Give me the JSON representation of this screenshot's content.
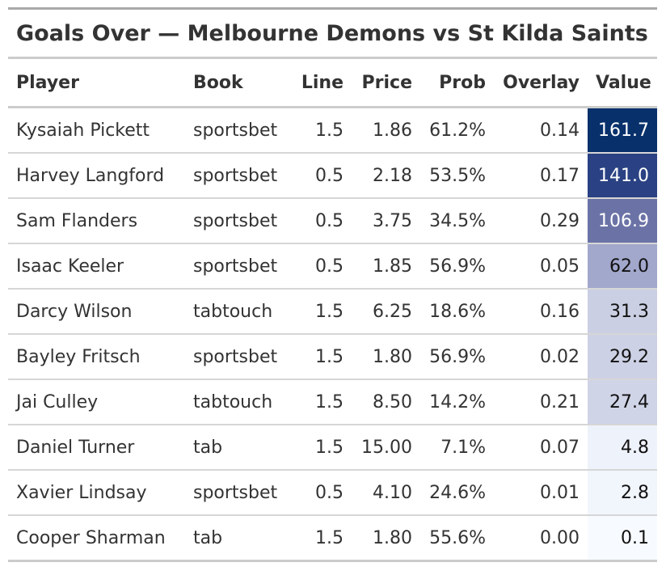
{
  "title": "Goals Over — Melbourne Demons vs St Kilda Saints",
  "columns": [
    "Player",
    "Book",
    "Line",
    "Price",
    "Prob",
    "Overlay",
    "Value"
  ],
  "rows": [
    {
      "player": "Kysaiah Pickett",
      "book": "sportsbet",
      "line": "1.5",
      "price": "1.86",
      "prob": "61.2%",
      "overlay": "0.14",
      "value": "161.7",
      "value_bg": "#08306b",
      "value_fg": "#ffffff"
    },
    {
      "player": "Harvey Langford",
      "book": "sportsbet",
      "line": "0.5",
      "price": "2.18",
      "prob": "53.5%",
      "overlay": "0.17",
      "value": "141.0",
      "value_bg": "#2a4283",
      "value_fg": "#ffffff"
    },
    {
      "player": "Sam Flanders",
      "book": "sportsbet",
      "line": "0.5",
      "price": "3.75",
      "prob": "34.5%",
      "overlay": "0.29",
      "value": "106.9",
      "value_bg": "#6b73a6",
      "value_fg": "#ffffff"
    },
    {
      "player": "Isaac Keeler",
      "book": "sportsbet",
      "line": "0.5",
      "price": "1.85",
      "prob": "56.9%",
      "overlay": "0.05",
      "value": "62.0",
      "value_bg": "#a2a7cc",
      "value_fg": "#111111"
    },
    {
      "player": "Darcy Wilson",
      "book": "tabtouch",
      "line": "1.5",
      "price": "6.25",
      "prob": "18.6%",
      "overlay": "0.16",
      "value": "31.3",
      "value_bg": "#cbcfe3",
      "value_fg": "#111111"
    },
    {
      "player": "Bayley Fritsch",
      "book": "sportsbet",
      "line": "1.5",
      "price": "1.80",
      "prob": "56.9%",
      "overlay": "0.02",
      "value": "29.2",
      "value_bg": "#cdd1e5",
      "value_fg": "#111111"
    },
    {
      "player": "Jai Culley",
      "book": "tabtouch",
      "line": "1.5",
      "price": "8.50",
      "prob": "14.2%",
      "overlay": "0.21",
      "value": "27.4",
      "value_bg": "#d0d4e7",
      "value_fg": "#111111"
    },
    {
      "player": "Daniel Turner",
      "book": "tab",
      "line": "1.5",
      "price": "15.00",
      "prob": "7.1%",
      "overlay": "0.07",
      "value": "4.8",
      "value_bg": "#eef2fa",
      "value_fg": "#111111"
    },
    {
      "player": "Xavier Lindsay",
      "book": "sportsbet",
      "line": "0.5",
      "price": "4.10",
      "prob": "24.6%",
      "overlay": "0.01",
      "value": "2.8",
      "value_bg": "#f1f5fc",
      "value_fg": "#111111"
    },
    {
      "player": "Cooper Sharman",
      "book": "tab",
      "line": "1.5",
      "price": "1.80",
      "prob": "55.6%",
      "overlay": "0.00",
      "value": "0.1",
      "value_bg": "#f7fbff",
      "value_fg": "#111111"
    }
  ]
}
